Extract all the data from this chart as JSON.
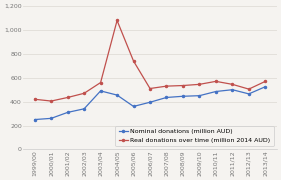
{
  "x_labels": [
    "1999/00",
    "2000/01",
    "2001/02",
    "2002/03",
    "2003/04",
    "2004/05",
    "2005/06",
    "2006/07",
    "2007/08",
    "2008/09",
    "2009/10",
    "2010/11",
    "2011/12",
    "2012/13",
    "2013/14"
  ],
  "nominal": [
    250,
    260,
    310,
    340,
    490,
    455,
    360,
    395,
    435,
    445,
    450,
    485,
    500,
    465,
    525
  ],
  "real": [
    420,
    405,
    435,
    470,
    560,
    1080,
    740,
    510,
    530,
    535,
    545,
    570,
    545,
    505,
    570
  ],
  "nominal_color": "#4472C4",
  "real_color": "#C0504D",
  "ylim": [
    0,
    1200
  ],
  "yticks": [
    0,
    200,
    400,
    600,
    800,
    1000,
    1200
  ],
  "background_color": "#f5f3f0",
  "legend_nominal": "Nominal donations (million AUD)",
  "legend_real": "Real donations over time (million 2014 AUD)",
  "tick_fontsize": 4.5,
  "legend_fontsize": 4.5,
  "linewidth": 0.9
}
